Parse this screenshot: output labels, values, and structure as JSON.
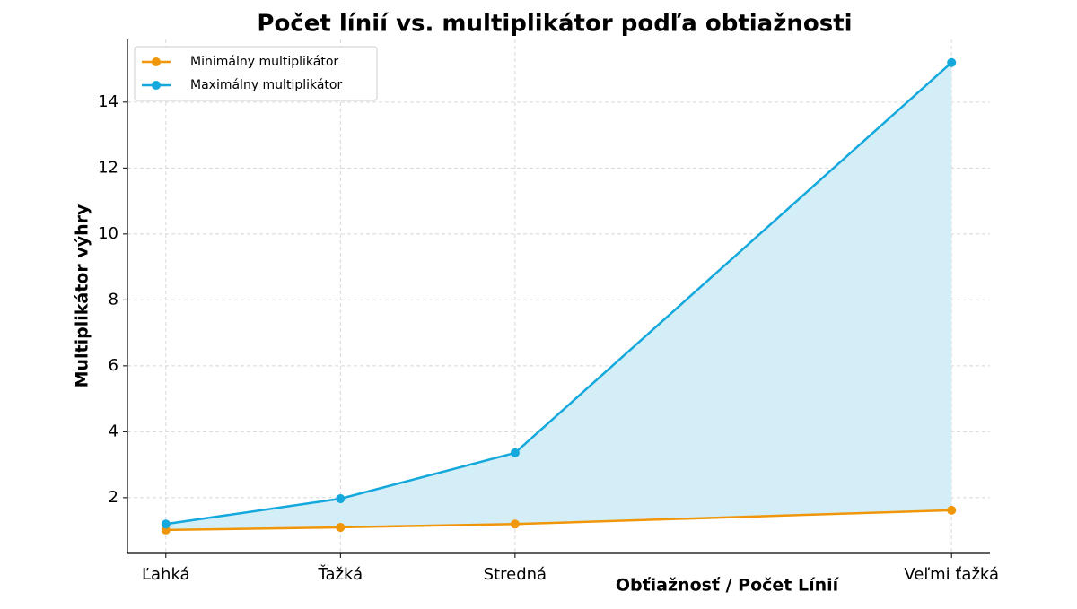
{
  "chart_data": {
    "type": "line",
    "title": "Počet línií vs. multiplikátor podľa obtiažnosti",
    "x_label": "Obťiažnosť / Počet Línií",
    "y_label": "Multiplikátor výhry",
    "x": [
      1,
      2,
      3,
      5.5
    ],
    "series": [
      {
        "name": "Minimálny multiplikátor",
        "color": "#f0960a",
        "values": [
          1.02,
          1.1,
          1.2,
          1.62
        ]
      },
      {
        "name": "Maximálny multiplikátor",
        "color": "#14a8dc",
        "values": [
          1.2,
          1.97,
          3.36,
          15.2
        ]
      }
    ],
    "fill_between": true,
    "fill_color": "#d4eef7",
    "xlim": [
      0.78,
      5.72
    ],
    "xticks": [
      {
        "value": 1,
        "label": "Ľahká"
      },
      {
        "value": 2,
        "label": "Ťažká"
      },
      {
        "value": 3,
        "label": "Stredná"
      },
      {
        "value": 5.5,
        "label": "Veľmi ťažká"
      }
    ],
    "ylim": [
      0.31,
      15.9
    ],
    "yticks": [
      2,
      4,
      6,
      8,
      10,
      12,
      14
    ],
    "grid": true,
    "legend": "upper-left"
  }
}
